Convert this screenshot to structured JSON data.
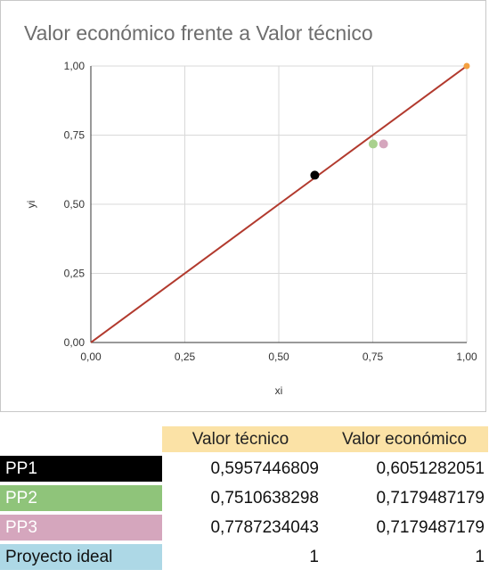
{
  "chart_data": {
    "type": "scatter",
    "title": "Valor económico frente a Valor técnico",
    "xlabel": "xi",
    "ylabel": "yi",
    "xlim": [
      0,
      1
    ],
    "ylim": [
      0,
      1
    ],
    "x_ticks": [
      "0,00",
      "0,25",
      "0,50",
      "0,75",
      "1,00"
    ],
    "y_ticks": [
      "0,00",
      "0,25",
      "0,50",
      "0,75",
      "1,00"
    ],
    "grid": true,
    "points": [
      {
        "name": "PP1",
        "x": 0.5957446809,
        "y": 0.6051282051,
        "color": "#000000"
      },
      {
        "name": "PP2",
        "x": 0.7510638298,
        "y": 0.7179487179,
        "color": "#a9d18e"
      },
      {
        "name": "PP3",
        "x": 0.7787234043,
        "y": 0.7179487179,
        "color": "#d5a6bd"
      },
      {
        "name": "Proyecto ideal",
        "x": 1,
        "y": 1,
        "color": "#f4a040"
      }
    ],
    "reference_line": {
      "x": [
        0,
        1
      ],
      "y": [
        0,
        1
      ],
      "color": "#b23a2e"
    }
  },
  "table": {
    "headers": [
      "Valor técnico",
      "Valor económico"
    ],
    "rows": [
      {
        "label": "PP1",
        "tech": "0,5957446809",
        "econ": "0,6051282051",
        "bg": "#000000"
      },
      {
        "label": "PP2",
        "tech": "0,7510638298",
        "econ": "0,7179487179",
        "bg": "#8fc47a"
      },
      {
        "label": "PP3",
        "tech": "0,7787234043",
        "econ": "0,7179487179",
        "bg": "#d5a6bd"
      },
      {
        "label": "Proyecto ideal",
        "tech": "1",
        "econ": "1",
        "bg": "#add8e6"
      }
    ]
  }
}
